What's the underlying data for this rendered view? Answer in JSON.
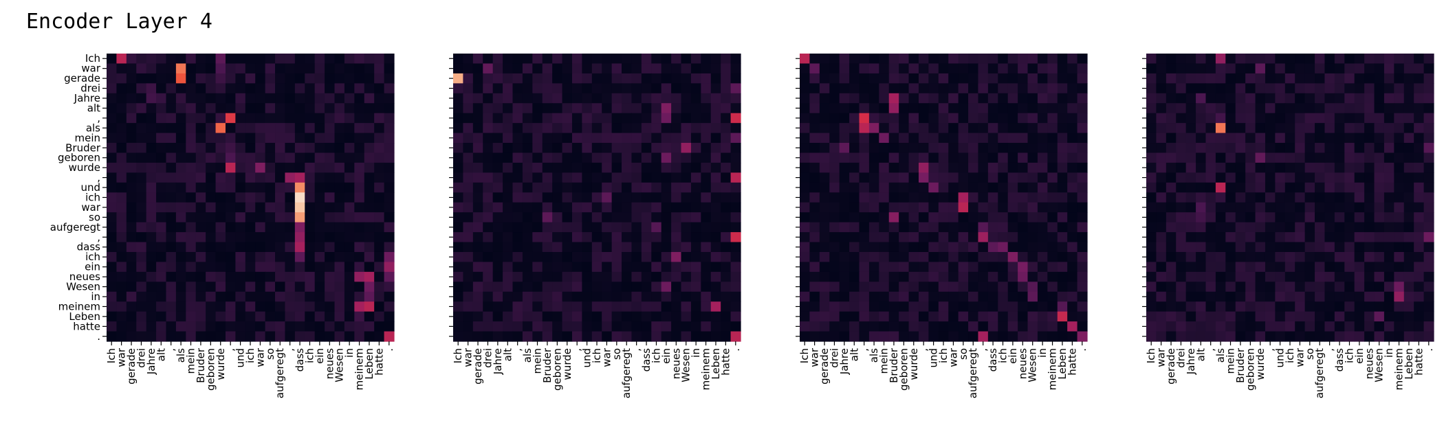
{
  "title": "Encoder Layer 4",
  "chart_data": {
    "type": "heatmap",
    "tokens": [
      "Ich",
      "war",
      "gerade",
      "drei",
      "Jahre",
      "alt",
      ",",
      "als",
      "mein",
      "Bruder",
      "geboren",
      "wurde",
      ",",
      "und",
      "ich",
      "war",
      "so",
      "aufgeregt",
      ",",
      "dass",
      "ich",
      "ein",
      "neues",
      "Wesen",
      "in",
      "meinem",
      "Leben",
      "hatte",
      "."
    ],
    "value_range": [
      0,
      1
    ],
    "colormap": "rocket",
    "heads": [
      {
        "hot": [
          [
            0,
            1,
            0.55
          ],
          [
            1,
            7,
            0.78
          ],
          [
            2,
            7,
            0.72
          ],
          [
            0,
            11,
            0.3
          ],
          [
            1,
            11,
            0.25
          ],
          [
            2,
            11,
            0.2
          ],
          [
            3,
            4,
            0.2
          ],
          [
            4,
            4,
            0.22
          ],
          [
            4,
            5,
            0.18
          ],
          [
            6,
            12,
            0.65
          ],
          [
            7,
            11,
            0.75
          ],
          [
            9,
            12,
            0.2
          ],
          [
            10,
            12,
            0.25
          ],
          [
            11,
            12,
            0.55
          ],
          [
            11,
            15,
            0.4
          ],
          [
            12,
            18,
            0.45
          ],
          [
            12,
            19,
            0.5
          ],
          [
            13,
            19,
            0.82
          ],
          [
            14,
            19,
            0.97
          ],
          [
            15,
            19,
            0.93
          ],
          [
            16,
            19,
            0.85
          ],
          [
            17,
            19,
            0.4
          ],
          [
            18,
            19,
            0.45
          ],
          [
            19,
            19,
            0.5
          ],
          [
            20,
            19,
            0.3
          ],
          [
            20,
            28,
            0.35
          ],
          [
            21,
            28,
            0.45
          ],
          [
            22,
            28,
            0.3
          ],
          [
            22,
            25,
            0.45
          ],
          [
            22,
            26,
            0.5
          ],
          [
            23,
            26,
            0.35
          ],
          [
            24,
            26,
            0.3
          ],
          [
            25,
            25,
            0.5
          ],
          [
            25,
            26,
            0.55
          ],
          [
            26,
            25,
            0.2
          ],
          [
            28,
            28,
            0.55
          ]
        ]
      },
      {
        "hot": [
          [
            2,
            0,
            0.88
          ],
          [
            1,
            3,
            0.32
          ],
          [
            6,
            28,
            0.6
          ],
          [
            5,
            21,
            0.4
          ],
          [
            6,
            21,
            0.35
          ],
          [
            9,
            23,
            0.45
          ],
          [
            12,
            28,
            0.55
          ],
          [
            18,
            28,
            0.6
          ],
          [
            20,
            22,
            0.4
          ],
          [
            23,
            21,
            0.35
          ],
          [
            25,
            26,
            0.5
          ],
          [
            28,
            28,
            0.55
          ],
          [
            3,
            28,
            0.3
          ],
          [
            8,
            28,
            0.3
          ],
          [
            10,
            21,
            0.35
          ],
          [
            14,
            15,
            0.3
          ],
          [
            16,
            9,
            0.3
          ],
          [
            17,
            20,
            0.28
          ]
        ]
      },
      {
        "hot": [
          [
            0,
            0,
            0.55
          ],
          [
            1,
            1,
            0.3
          ],
          [
            4,
            9,
            0.5
          ],
          [
            5,
            9,
            0.45
          ],
          [
            6,
            6,
            0.62
          ],
          [
            7,
            6,
            0.55
          ],
          [
            7,
            7,
            0.4
          ],
          [
            8,
            8,
            0.35
          ],
          [
            9,
            4,
            0.3
          ],
          [
            11,
            12,
            0.45
          ],
          [
            12,
            12,
            0.38
          ],
          [
            13,
            13,
            0.35
          ],
          [
            14,
            16,
            0.5
          ],
          [
            15,
            16,
            0.55
          ],
          [
            16,
            9,
            0.42
          ],
          [
            17,
            18,
            0.28
          ],
          [
            18,
            18,
            0.48
          ],
          [
            19,
            19,
            0.3
          ],
          [
            19,
            20,
            0.35
          ],
          [
            20,
            21,
            0.4
          ],
          [
            21,
            22,
            0.38
          ],
          [
            22,
            22,
            0.35
          ],
          [
            23,
            23,
            0.28
          ],
          [
            24,
            23,
            0.3
          ],
          [
            25,
            26,
            0.28
          ],
          [
            26,
            26,
            0.58
          ],
          [
            27,
            27,
            0.5
          ],
          [
            28,
            18,
            0.5
          ],
          [
            28,
            28,
            0.4
          ]
        ]
      },
      {
        "hot": [
          [
            0,
            7,
            0.45
          ],
          [
            1,
            11,
            0.3
          ],
          [
            6,
            7,
            0.22
          ],
          [
            7,
            7,
            0.78
          ],
          [
            10,
            11,
            0.32
          ],
          [
            13,
            7,
            0.55
          ],
          [
            23,
            25,
            0.35
          ],
          [
            24,
            25,
            0.45
          ],
          [
            26,
            23,
            0.3
          ],
          [
            15,
            5,
            0.25
          ],
          [
            16,
            5,
            0.22
          ],
          [
            18,
            28,
            0.35
          ],
          [
            9,
            28,
            0.28
          ],
          [
            4,
            5,
            0.25
          ]
        ]
      }
    ]
  }
}
